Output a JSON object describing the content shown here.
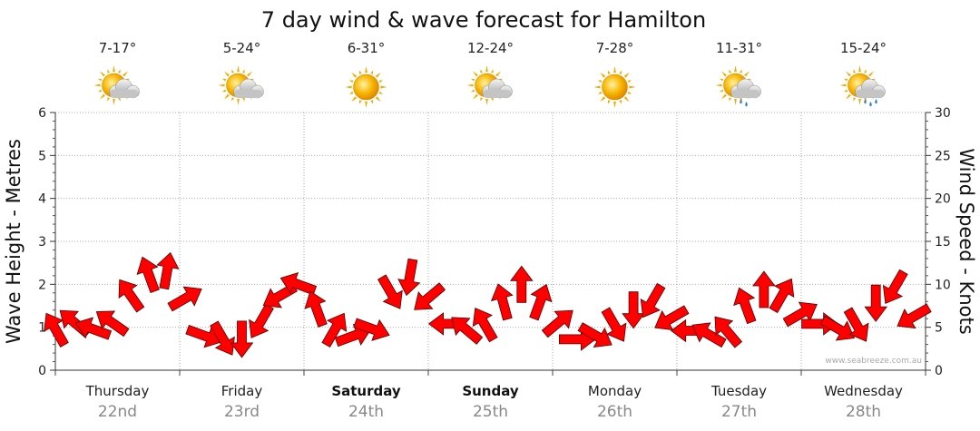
{
  "title": "7 day wind & wave forecast for Hamilton",
  "credit": "www.seabreeze.com.au",
  "days": [
    {
      "name": "Thursday",
      "date": "22nd",
      "temp": "7-17°",
      "weather_icon": "sun-cloud-icon",
      "bold": false
    },
    {
      "name": "Friday",
      "date": "23rd",
      "temp": "5-24°",
      "weather_icon": "sun-cloud-icon",
      "bold": false
    },
    {
      "name": "Saturday",
      "date": "24th",
      "temp": "6-31°",
      "weather_icon": "sun-icon",
      "bold": true
    },
    {
      "name": "Sunday",
      "date": "25th",
      "temp": "12-24°",
      "weather_icon": "sun-cloud-icon",
      "bold": true
    },
    {
      "name": "Monday",
      "date": "26th",
      "temp": "7-28°",
      "weather_icon": "sun-icon",
      "bold": false
    },
    {
      "name": "Tuesday",
      "date": "27th",
      "temp": "11-31°",
      "weather_icon": "sun-cloud-rain-icon",
      "bold": false
    },
    {
      "name": "Wednesday",
      "date": "28th",
      "temp": "15-24°",
      "weather_icon": "sun-cloud-rain-icon",
      "bold": false
    }
  ],
  "colors": {
    "arrow": "#ff0000",
    "arrow_stroke": "#550000",
    "grid": "#aaaaaa"
  },
  "chart_data": {
    "type": "line",
    "title": "7 day wind & wave forecast for Hamilton",
    "ylabel_left": "Wave Height - Metres",
    "ylabel_right": "Wind Speed - Knots",
    "ylim_left": [
      0,
      6
    ],
    "ylim_right": [
      0,
      30
    ],
    "yticks_left": [
      "0",
      "1",
      "2",
      "3",
      "4",
      "5",
      "6"
    ],
    "yticks_right": [
      "0",
      "5",
      "10",
      "15",
      "20",
      "25",
      "30"
    ],
    "grid": true,
    "series": [
      {
        "name": "Wind Speed - Knots",
        "marker": "direction-arrow",
        "x_day": [
          0.0,
          0.15,
          0.3,
          0.45,
          0.6,
          0.75,
          0.9,
          1.05,
          1.2,
          1.35,
          1.5,
          1.65,
          1.8,
          1.95,
          2.1,
          2.25,
          2.4,
          2.55,
          2.7,
          2.85,
          3.0,
          3.15,
          3.3,
          3.45,
          3.6,
          3.75,
          3.9,
          4.05,
          4.2,
          4.35,
          4.5,
          4.65,
          4.8,
          4.95,
          5.1,
          5.25,
          5.4,
          5.55,
          5.7,
          5.85,
          6.0,
          6.15,
          6.3,
          6.45,
          6.6,
          6.75,
          6.9
        ],
        "knots": [
          4.8,
          5.6,
          4.8,
          5.6,
          8.8,
          11.2,
          11.6,
          8.4,
          4.0,
          3.6,
          3.6,
          5.6,
          8.6,
          10.0,
          7.2,
          4.8,
          4.0,
          4.8,
          9.0,
          10.8,
          8.4,
          5.4,
          4.8,
          5.4,
          8.0,
          10.0,
          8.0,
          5.6,
          3.6,
          4.0,
          5.2,
          7.0,
          8.0,
          6.0,
          4.6,
          4.2,
          4.6,
          7.6,
          9.4,
          8.8,
          6.6,
          5.4,
          4.8,
          5.2,
          7.8,
          9.6,
          6.2
        ],
        "direction_deg": [
          240,
          220,
          200,
          215,
          235,
          250,
          280,
          330,
          20,
          60,
          90,
          120,
          150,
          200,
          250,
          300,
          340,
          20,
          60,
          100,
          140,
          180,
          220,
          240,
          255,
          270,
          290,
          320,
          0,
          30,
          60,
          90,
          120,
          150,
          180,
          210,
          230,
          250,
          270,
          300,
          330,
          0,
          30,
          60,
          90,
          120,
          150
        ]
      }
    ]
  }
}
